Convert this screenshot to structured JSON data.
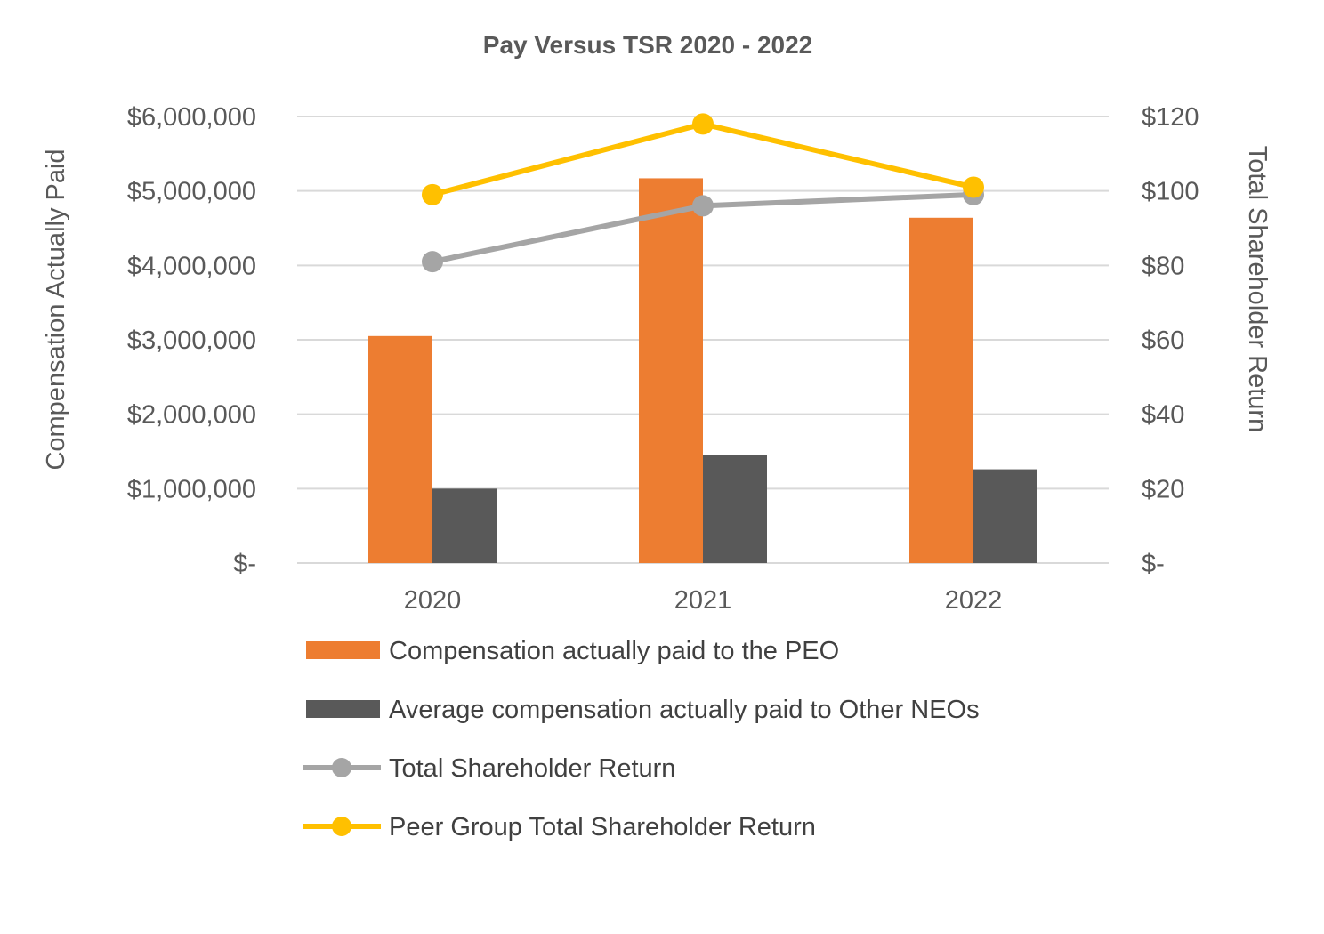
{
  "chart_data": {
    "type": "bar",
    "title": "Pay Versus TSR 2020 - 2022",
    "categories": [
      "2020",
      "2021",
      "2022"
    ],
    "ylabel": "Compensation Actually Paid",
    "y2label": "Total Shareholder Return",
    "ylim": [
      0,
      6000000
    ],
    "y2lim": [
      0,
      120
    ],
    "yticks": [
      {
        "value": 0,
        "label": "$-"
      },
      {
        "value": 1000000,
        "label": "$1,000,000"
      },
      {
        "value": 2000000,
        "label": "$2,000,000"
      },
      {
        "value": 3000000,
        "label": "$3,000,000"
      },
      {
        "value": 4000000,
        "label": "$4,000,000"
      },
      {
        "value": 5000000,
        "label": "$5,000,000"
      },
      {
        "value": 6000000,
        "label": "$6,000,000"
      }
    ],
    "y2ticks": [
      {
        "value": 0,
        "label": "$-"
      },
      {
        "value": 20,
        "label": "$20"
      },
      {
        "value": 40,
        "label": "$40"
      },
      {
        "value": 60,
        "label": "$60"
      },
      {
        "value": 80,
        "label": "$80"
      },
      {
        "value": 100,
        "label": "$100"
      },
      {
        "value": 120,
        "label": "$120"
      }
    ],
    "grid": true,
    "legend_position": "bottom",
    "series": [
      {
        "name": "Compensation actually paid to the PEO",
        "kind": "bar",
        "axis": "left",
        "color": "#ed7d31",
        "values": [
          3050000,
          5170000,
          4640000
        ]
      },
      {
        "name": "Average compensation actually paid to Other NEOs",
        "kind": "bar",
        "axis": "left",
        "color": "#595959",
        "values": [
          1000000,
          1450000,
          1260000
        ]
      },
      {
        "name": "Total Shareholder Return",
        "kind": "line",
        "axis": "right",
        "color": "#a5a5a5",
        "values": [
          81,
          96,
          99
        ]
      },
      {
        "name": "Peer Group Total Shareholder Return",
        "kind": "line",
        "axis": "right",
        "color": "#ffc000",
        "values": [
          99,
          118,
          101
        ]
      }
    ]
  }
}
